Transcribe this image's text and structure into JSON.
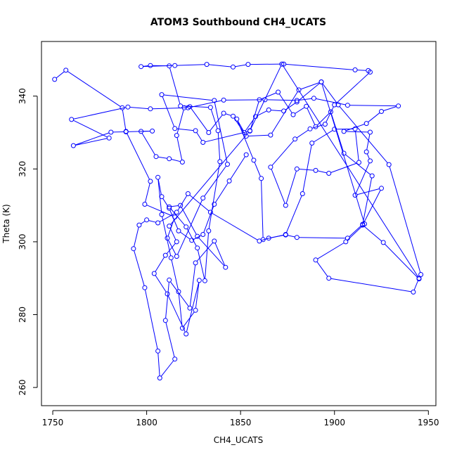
{
  "chart_data": {
    "type": "line",
    "title": "ATOM3 Southbound CH4_UCATS",
    "xlabel": "CH4_UCATS",
    "ylabel": "Theta (K)",
    "xlim": [
      1744,
      1954
    ],
    "ylim": [
      255,
      355
    ],
    "xticks": [
      1750,
      1800,
      1850,
      1900,
      1950
    ],
    "yticks": [
      260,
      280,
      300,
      320,
      340
    ],
    "grid": false,
    "legend": "none",
    "series_color": "#0000ff",
    "markers": "open-circle",
    "series": [
      {
        "points": [
          [
            1751,
            344.6
          ],
          [
            1757,
            347.1
          ],
          [
            1787,
            336.8
          ],
          [
            1789,
            330.3
          ],
          [
            1802,
            316.6
          ],
          [
            1799,
            310.3
          ],
          [
            1815,
            306.8
          ],
          [
            1811,
            301.0
          ],
          [
            1816,
            296.0
          ],
          [
            1830,
            312.0
          ],
          [
            1843,
            321.3
          ],
          [
            1836,
            338.8
          ],
          [
            1808,
            340.4
          ],
          [
            1815,
            331.1
          ],
          [
            1826,
            330.5
          ],
          [
            1830,
            327.3
          ],
          [
            1855,
            330.4
          ],
          [
            1860,
            339.0
          ],
          [
            1870,
            341.1
          ],
          [
            1878,
            334.9
          ],
          [
            1885,
            337.2
          ],
          [
            1890,
            331.6
          ],
          [
            1898,
            335.7
          ],
          [
            1905,
            324.3
          ],
          [
            1920,
            318.1
          ],
          [
            1915,
            304.8
          ],
          [
            1907,
            301.0
          ],
          [
            1880,
            301.2
          ],
          [
            1874,
            301.9
          ],
          [
            1865,
            301.0
          ],
          [
            1860,
            300.2
          ],
          [
            1834,
            308.1
          ],
          [
            1822,
            313.2
          ],
          [
            1816,
            308.1
          ],
          [
            1806,
            305.2
          ],
          [
            1800,
            306.0
          ],
          [
            1796,
            304.6
          ],
          [
            1793,
            298.1
          ],
          [
            1799,
            287.4
          ],
          [
            1806,
            270.0
          ],
          [
            1807,
            262.6
          ],
          [
            1815,
            267.8
          ],
          [
            1810,
            278.4
          ],
          [
            1812,
            289.5
          ],
          [
            1823,
            281.8
          ],
          [
            1826,
            294.2
          ],
          [
            1836,
            300.2
          ],
          [
            1842,
            293.0
          ],
          [
            1827,
            301.5
          ],
          [
            1818,
            310.0
          ],
          [
            1812,
            309.6
          ],
          [
            1821,
            304.1
          ],
          [
            1827,
            298.3
          ],
          [
            1831,
            289.3
          ],
          [
            1833,
            303.0
          ],
          [
            1839,
            322.0
          ],
          [
            1838,
            330.5
          ],
          [
            1834,
            336.9
          ],
          [
            1818,
            337.3
          ],
          [
            1812,
            348.3
          ],
          [
            1802,
            348.4
          ],
          [
            1797,
            348.1
          ],
          [
            1815,
            348.4
          ],
          [
            1832,
            348.7
          ],
          [
            1846,
            348.0
          ],
          [
            1854,
            348.7
          ],
          [
            1873,
            348.8
          ],
          [
            1911,
            347.2
          ],
          [
            1918,
            347.0
          ],
          [
            1919,
            346.6
          ],
          [
            1900,
            337.6
          ],
          [
            1895,
            332.3
          ],
          [
            1887,
            331.0
          ],
          [
            1879,
            328.2
          ],
          [
            1866,
            320.5
          ],
          [
            1874,
            310.0
          ],
          [
            1880,
            320.0
          ],
          [
            1890,
            319.6
          ],
          [
            1897,
            318.8
          ],
          [
            1913,
            321.8
          ],
          [
            1911,
            331.0
          ],
          [
            1900,
            330.9
          ],
          [
            1888,
            327.1
          ],
          [
            1883,
            313.2
          ],
          [
            1874,
            302.0
          ],
          [
            1862,
            300.6
          ],
          [
            1861,
            317.4
          ],
          [
            1857,
            322.4
          ],
          [
            1848,
            333.7
          ],
          [
            1852,
            330.0
          ],
          [
            1858,
            334.4
          ],
          [
            1865,
            336.2
          ],
          [
            1873,
            335.9
          ],
          [
            1880,
            338.4
          ],
          [
            1893,
            343.9
          ],
          [
            1881,
            341.7
          ],
          [
            1866,
            329.3
          ],
          [
            1853,
            329.0
          ],
          [
            1846,
            334.5
          ],
          [
            1841,
            335.3
          ],
          [
            1833,
            330.0
          ],
          [
            1823,
            337.1
          ],
          [
            1820,
            336.8
          ],
          [
            1816,
            329.2
          ],
          [
            1819,
            321.9
          ],
          [
            1812,
            322.8
          ],
          [
            1805,
            323.4
          ],
          [
            1797,
            330.3
          ],
          [
            1803,
            330.4
          ],
          [
            1789,
            330.2
          ],
          [
            1781,
            330.1
          ],
          [
            1761,
            326.4
          ],
          [
            1780,
            328.5
          ],
          [
            1760,
            333.6
          ],
          [
            1790,
            337.0
          ],
          [
            1802,
            336.5
          ],
          [
            1822,
            336.8
          ],
          [
            1841,
            338.9
          ],
          [
            1863,
            339.0
          ],
          [
            1880,
            338.8
          ],
          [
            1889,
            339.4
          ],
          [
            1907,
            337.5
          ],
          [
            1934,
            337.3
          ],
          [
            1925,
            335.8
          ],
          [
            1917,
            332.5
          ],
          [
            1905,
            330.3
          ],
          [
            1919,
            330.1
          ],
          [
            1917,
            324.7
          ],
          [
            1919,
            322.2
          ],
          [
            1911,
            312.8
          ],
          [
            1925,
            314.7
          ],
          [
            1915,
            304.6
          ],
          [
            1926,
            299.8
          ],
          [
            1945,
            289.8
          ],
          [
            1946,
            291.0
          ],
          [
            1929,
            321.2
          ],
          [
            1902,
            337.6
          ],
          [
            1893,
            343.9
          ],
          [
            1916,
            304.9
          ],
          [
            1906,
            300.0
          ],
          [
            1890,
            295.0
          ],
          [
            1897,
            290.0
          ],
          [
            1942,
            286.2
          ],
          [
            1945,
            290.0
          ],
          [
            1872,
            348.8
          ],
          [
            1855,
            330.5
          ],
          [
            1812,
            304.3
          ],
          [
            1816,
            300.0
          ],
          [
            1810,
            296.3
          ],
          [
            1804,
            291.3
          ],
          [
            1811,
            285.7
          ],
          [
            1821,
            274.7
          ],
          [
            1828,
            289.4
          ],
          [
            1826,
            281.2
          ],
          [
            1819,
            276.3
          ],
          [
            1817,
            286.3
          ],
          [
            1813,
            295.6
          ],
          [
            1808,
            307.5
          ],
          [
            1806,
            317.7
          ],
          [
            1808,
            312.4
          ],
          [
            1812,
            309.2
          ],
          [
            1817,
            303.0
          ],
          [
            1824,
            300.4
          ],
          [
            1830,
            302.0
          ],
          [
            1836,
            310.3
          ],
          [
            1844,
            316.7
          ],
          [
            1853,
            323.9
          ]
        ]
      }
    ]
  }
}
